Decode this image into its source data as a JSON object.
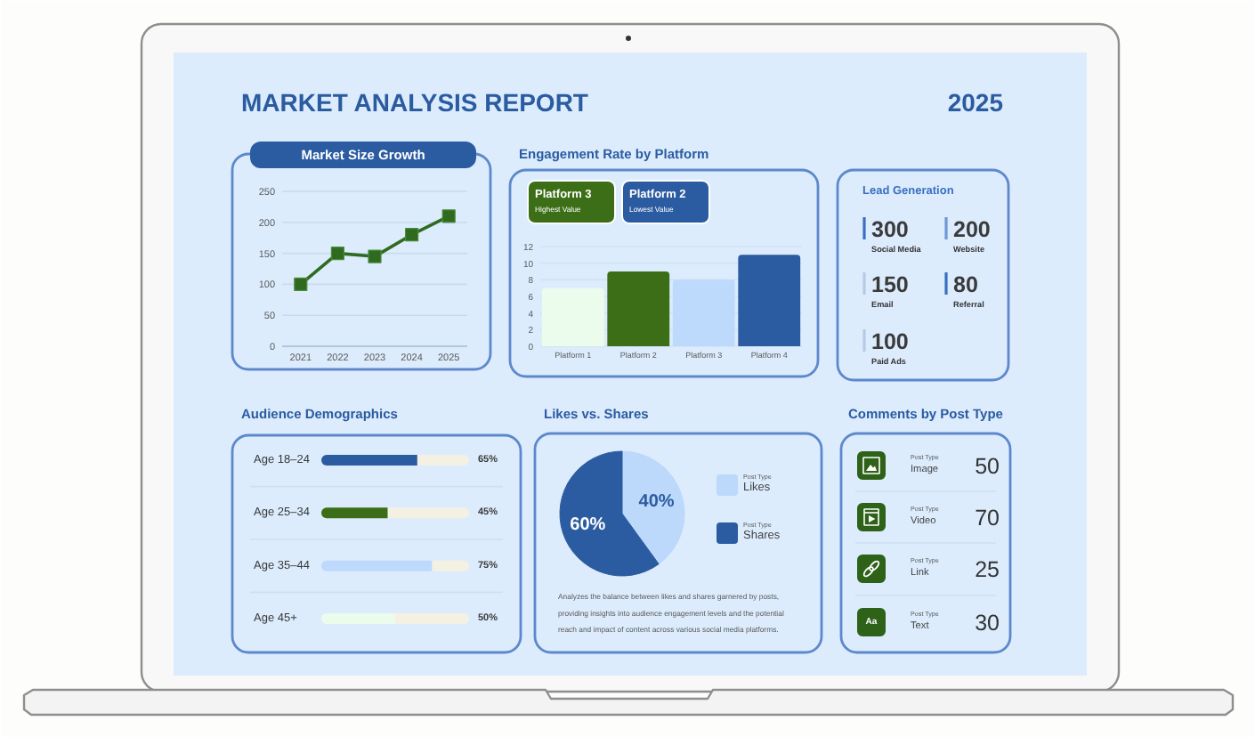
{
  "chart_data": [
    {
      "type": "other",
      "title": "MARKET ANALYSIS REPORT",
      "annotations": [
        "2025"
      ]
    },
    {
      "type": "line",
      "title": "Market Size Growth",
      "categories": [
        "2021",
        "2022",
        "2023",
        "2024",
        "2025"
      ],
      "values": [
        100,
        150,
        145,
        180,
        210
      ],
      "color": "#2f6b1f",
      "ylim": [
        0,
        250
      ],
      "yticks": [
        0,
        50,
        100,
        150,
        200,
        250
      ],
      "grid": "y",
      "marker": "square"
    },
    {
      "type": "bar",
      "title": "Engagement Rate by Platform",
      "categories": [
        "Platform 1",
        "Platform 2",
        "Platform 3",
        "Platform 4"
      ],
      "values": [
        7,
        9,
        8,
        11
      ],
      "colors": [
        "#ecfcec",
        "#3b6e16",
        "#bdd9fb",
        "#2b5ba0"
      ],
      "ylim": [
        0,
        12
      ],
      "yticks": [
        0,
        2,
        4,
        6,
        8,
        10,
        12
      ],
      "grid": "y",
      "annotations": [
        "Platform 3",
        "Highest Value",
        "Platform 2",
        "Lowest Value"
      ]
    },
    {
      "type": "other",
      "title": "Lead Generation",
      "categories": [
        "Social Media",
        "Website",
        "Email",
        "Referral",
        "Paid Ads"
      ],
      "values": [
        300,
        200,
        150,
        80,
        100
      ],
      "colors": [
        "#3a6fc0",
        "#6f98d6",
        "#b7c9e4",
        "#3a6fc0",
        "#b7c9e4"
      ],
      "data_labels": true
    },
    {
      "type": "bar",
      "title": "Audience Demographics",
      "orientation": "horizontal",
      "stacked": true,
      "categories": [
        "Age 18–24",
        "Age 25–34",
        "Age 35–44",
        "Age 45+"
      ],
      "series": [
        {
          "colors": [
            "#2b5ba0",
            "#3b6e16",
            "#bdd9fb",
            "#ecfcec"
          ],
          "values": [
            65,
            45,
            75,
            50
          ],
          "value_labels": [
            "65%",
            "45%",
            "75%",
            "50%"
          ]
        },
        {
          "color": "#f4f1e3",
          "values": [
            35,
            55,
            25,
            50
          ]
        }
      ],
      "xlim": [
        0,
        100
      ],
      "tick_labels": "y"
    },
    {
      "type": "pie",
      "title": "Likes vs. Shares",
      "categories": [
        "Likes",
        "Shares"
      ],
      "values": [
        40,
        60
      ],
      "colors": [
        "#bcd8fb",
        "#2b5ba0"
      ],
      "value_labels": [
        "40%",
        "60%"
      ],
      "legend": "right",
      "annotations": [
        "Post Type",
        "Post Type",
        "Analyzes the balance between likes and shares garnered by posts, providing insights into audience engagement levels and the potential reach and impact of content across various social media platforms."
      ]
    },
    {
      "type": "other",
      "title": "Comments by Post Type",
      "categories": [
        "Image",
        "Video",
        "Link",
        "Text"
      ],
      "values": [
        50,
        70,
        25,
        30
      ],
      "data_labels": true,
      "annotations": [
        "Post Type",
        "Post Type",
        "Post Type",
        "Post Type",
        "Aa"
      ]
    }
  ]
}
